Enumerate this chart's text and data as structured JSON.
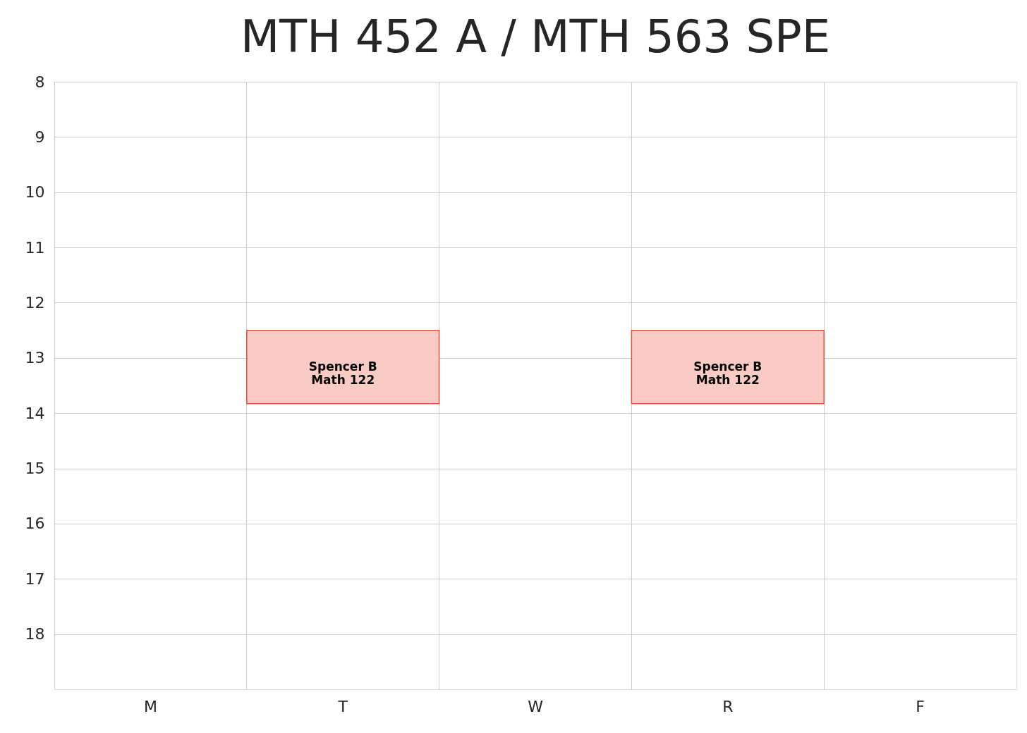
{
  "chart_data": {
    "type": "bar",
    "title": "MTH 452 A / MTH 563 SPE",
    "categories": [
      "M",
      "T",
      "W",
      "R",
      "F"
    ],
    "values": [
      null,
      1.33,
      null,
      1.33,
      null
    ],
    "colors": [
      "#f9cbc4",
      "#f9cbc4",
      "#f9cbc4",
      "#f9cbc4",
      "#f9cbc4"
    ],
    "base": [
      null,
      12.5,
      null,
      12.5,
      null
    ],
    "ylim": [
      19,
      8
    ],
    "yticks": [
      8,
      9,
      10,
      11,
      12,
      13,
      14,
      15,
      16,
      17,
      18
    ],
    "grid": true,
    "annotations": [
      "Spencer B\nMath 122",
      "Spencer B\nMath 122"
    ]
  }
}
